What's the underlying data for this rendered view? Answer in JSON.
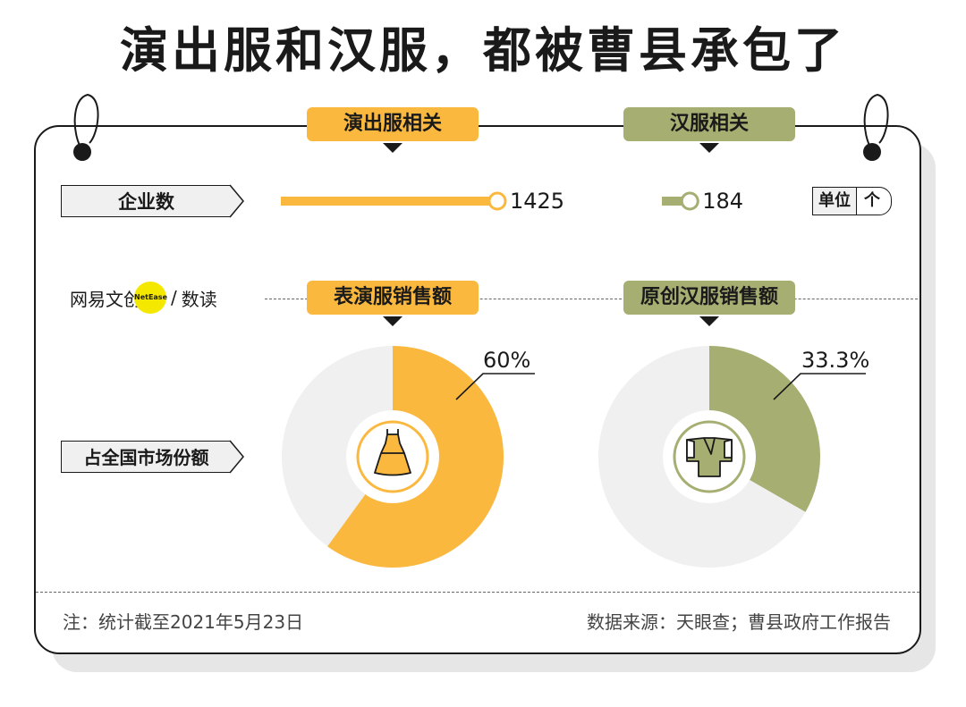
{
  "title": "演出服和汉服，都被曹县承包了",
  "columns": {
    "left_header": "演出服相关",
    "right_header": "汉服相关",
    "left_share_header": "表演服销售额",
    "right_share_header": "原创汉服销售额"
  },
  "rows": {
    "enterprises_label": "企业数",
    "share_label": "占全国市场份额"
  },
  "unit": {
    "label": "单位",
    "value": "个"
  },
  "brand": {
    "name": "网易文创",
    "badge": "NetEase",
    "slash": "/",
    "sub": "数读"
  },
  "note": "注：统计截至2021年5月23日",
  "source": "数据来源：天眼查；曹县政府工作报告",
  "colors": {
    "orange": "#fbb83f",
    "green": "#a6ae72",
    "gray": "#f0f0f0",
    "yellow": "#f5e800"
  },
  "chart_data": [
    {
      "type": "bar",
      "title": "企业数",
      "categories": [
        "演出服相关",
        "汉服相关"
      ],
      "values": [
        1425,
        184
      ],
      "labels": [
        "1425",
        "184"
      ],
      "unit": "个"
    },
    {
      "type": "pie",
      "title": "表演服销售额",
      "values": [
        60,
        40
      ],
      "label": "60%"
    },
    {
      "type": "pie",
      "title": "原创汉服销售额",
      "values": [
        33.3,
        66.7
      ],
      "label": "33.3%"
    }
  ]
}
